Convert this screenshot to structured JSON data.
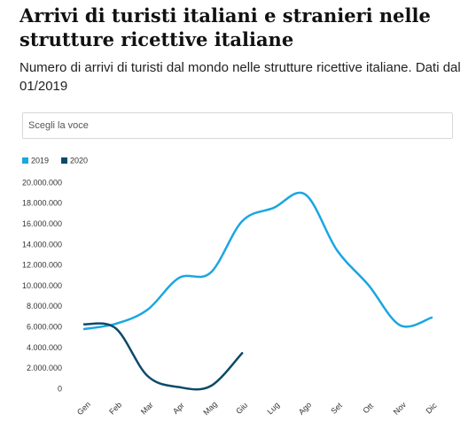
{
  "header": {
    "title": "Arrivi di turisti italiani e stranieri nelle strutture ricettive italiane",
    "subtitle": "Numero di arrivi di turisti dal mondo nelle strutture ricettive italiane. Dati dal 01/2019",
    "select_placeholder": "Scegli la voce"
  },
  "chart_data": {
    "type": "line",
    "categories": [
      "Gen",
      "Feb",
      "Mar",
      "Apr",
      "Mag",
      "Giu",
      "Lug",
      "Ago",
      "Set",
      "Ott",
      "Nov",
      "Dic"
    ],
    "series": [
      {
        "name": "2019",
        "color": "#1ba6e2",
        "values": [
          5840000,
          6350000,
          7700000,
          10800000,
          11300000,
          16300000,
          17600000,
          18900000,
          13500000,
          10100000,
          6200000,
          6950000
        ]
      },
      {
        "name": "2020",
        "color": "#0d4a6a",
        "values": [
          6300000,
          5900000,
          1300000,
          200000,
          300000,
          3500000,
          null,
          null,
          null,
          null,
          null,
          null
        ]
      }
    ],
    "ylim": [
      0,
      20000000
    ],
    "yticks": [
      0,
      {
        "value": 2000000,
        "label": "2.000.000"
      },
      {
        "value": 4000000,
        "label": "4.000.000"
      },
      {
        "value": 6000000,
        "label": "6.000.000"
      },
      {
        "value": 8000000,
        "label": "8.000.000"
      },
      {
        "value": 10000000,
        "label": "10.000.000"
      },
      {
        "value": 12000000,
        "label": "12.000.000"
      },
      {
        "value": 14000000,
        "label": "14.000.000"
      },
      {
        "value": 16000000,
        "label": "16.000.000"
      },
      {
        "value": 18000000,
        "label": "18.000.000"
      },
      {
        "value": 20000000,
        "label": "20.000.000"
      }
    ],
    "grid": false,
    "legend": "top-left"
  }
}
